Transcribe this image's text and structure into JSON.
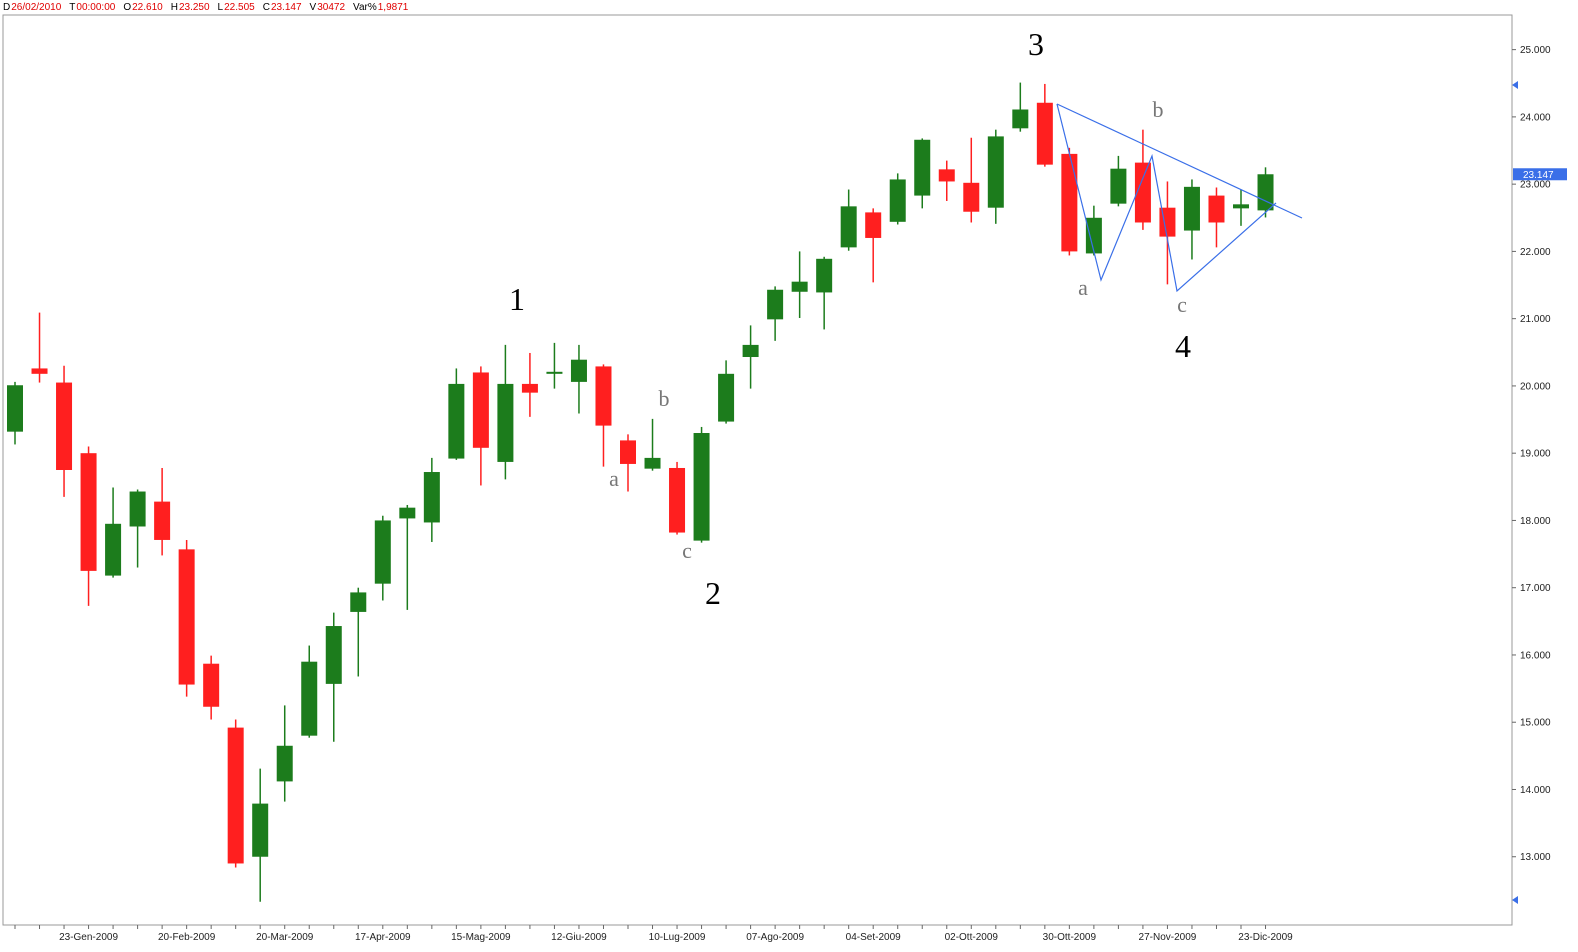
{
  "chart_data": {
    "type": "candlestick",
    "header": [
      {
        "label": "D",
        "value": "26/02/2010"
      },
      {
        "label": "T",
        "value": "00:00:00"
      },
      {
        "label": "O",
        "value": "22.610"
      },
      {
        "label": "H",
        "value": "23.250"
      },
      {
        "label": "L",
        "value": "22.505"
      },
      {
        "label": "C",
        "value": "23.147"
      },
      {
        "label": "V",
        "value": "30472"
      },
      {
        "label": "Var%",
        "value": "1,9871"
      }
    ],
    "categories": [
      null,
      null,
      null,
      "23-Gen-2009",
      null,
      null,
      null,
      "20-Feb-2009",
      null,
      null,
      null,
      "20-Mar-2009",
      null,
      null,
      null,
      "17-Apr-2009",
      null,
      null,
      null,
      "15-Mag-2009",
      null,
      null,
      null,
      "12-Giu-2009",
      null,
      null,
      null,
      "10-Lug-2009",
      null,
      null,
      null,
      "07-Ago-2009",
      null,
      null,
      null,
      "04-Set-2009",
      null,
      null,
      null,
      "02-Ott-2009",
      null,
      null,
      null,
      "30-Ott-2009",
      null,
      null,
      null,
      "27-Nov-2009",
      null,
      null,
      null,
      "23-Dic-2009"
    ],
    "open": [
      19.32,
      20.26,
      20.05,
      19.0,
      17.18,
      17.91,
      18.28,
      17.57,
      15.87,
      14.92,
      13.0,
      14.12,
      14.8,
      15.57,
      16.64,
      17.06,
      18.03,
      17.97,
      18.92,
      20.2,
      18.87,
      20.03,
      20.18,
      20.06,
      20.29,
      19.19,
      18.77,
      18.78,
      17.7,
      19.47,
      20.43,
      20.99,
      21.4,
      21.39,
      22.06,
      22.58,
      22.44,
      22.83,
      23.22,
      23.02,
      22.65,
      23.83,
      24.21,
      23.45,
      21.97,
      22.71,
      23.32,
      22.65,
      22.31,
      22.83,
      22.64,
      22.61
    ],
    "high": [
      20.06,
      21.09,
      20.3,
      19.1,
      18.49,
      18.46,
      18.78,
      17.71,
      15.99,
      15.04,
      14.31,
      15.25,
      16.14,
      16.63,
      17.0,
      18.07,
      18.23,
      18.93,
      20.26,
      20.29,
      20.61,
      20.49,
      20.64,
      20.61,
      20.32,
      19.28,
      19.51,
      18.87,
      19.39,
      20.38,
      20.9,
      21.48,
      22.0,
      21.92,
      22.92,
      22.64,
      23.16,
      23.68,
      23.35,
      23.69,
      23.81,
      24.51,
      24.49,
      23.54,
      22.68,
      23.42,
      23.81,
      23.04,
      23.07,
      22.95,
      22.92,
      23.25
    ],
    "low": [
      19.13,
      20.05,
      18.35,
      16.73,
      17.15,
      17.3,
      17.48,
      15.38,
      15.04,
      12.84,
      12.33,
      13.82,
      14.77,
      14.71,
      15.68,
      16.81,
      16.67,
      17.68,
      18.9,
      18.52,
      18.61,
      19.54,
      19.96,
      19.59,
      18.8,
      18.43,
      18.74,
      17.79,
      17.67,
      19.44,
      19.96,
      20.67,
      21.01,
      20.84,
      22.01,
      21.54,
      22.4,
      22.64,
      22.75,
      22.43,
      22.41,
      23.78,
      23.26,
      21.94,
      21.94,
      22.67,
      22.32,
      21.51,
      21.88,
      22.06,
      22.38,
      22.505
    ],
    "close": [
      20.01,
      20.18,
      18.75,
      17.25,
      17.95,
      18.43,
      17.71,
      15.56,
      15.23,
      12.9,
      13.79,
      14.65,
      15.9,
      16.43,
      16.93,
      18.0,
      18.19,
      18.72,
      20.03,
      19.08,
      20.03,
      19.9,
      20.21,
      20.39,
      19.41,
      18.84,
      18.93,
      17.82,
      19.3,
      20.18,
      20.61,
      21.43,
      21.55,
      21.89,
      22.67,
      22.2,
      23.07,
      23.66,
      23.04,
      22.59,
      23.71,
      24.11,
      23.29,
      22.0,
      22.5,
      23.23,
      22.43,
      22.22,
      22.96,
      22.43,
      22.7,
      23.147
    ],
    "up_color": "#1c7c1c",
    "down_color": "#ff1f1f",
    "line_color": "#3a6fe8",
    "ylim": [
      12,
      25.5
    ],
    "yticks": [
      {
        "value": 13,
        "label": "13.000"
      },
      {
        "value": 14,
        "label": "14.000"
      },
      {
        "value": 15,
        "label": "15.000"
      },
      {
        "value": 16,
        "label": "16.000"
      },
      {
        "value": 17,
        "label": "17.000"
      },
      {
        "value": 18,
        "label": "18.000"
      },
      {
        "value": 19,
        "label": "19.000"
      },
      {
        "value": 20,
        "label": "20.000"
      },
      {
        "value": 21,
        "label": "21.000"
      },
      {
        "value": 22,
        "label": "22.000"
      },
      {
        "value": 23,
        "label": "23.000"
      },
      {
        "value": 24,
        "label": "24.000"
      },
      {
        "value": 25,
        "label": "25.000"
      }
    ],
    "annotations": [
      "1",
      "a",
      "b",
      "c",
      "2",
      "3",
      "a",
      "b",
      "c",
      "4"
    ]
  }
}
